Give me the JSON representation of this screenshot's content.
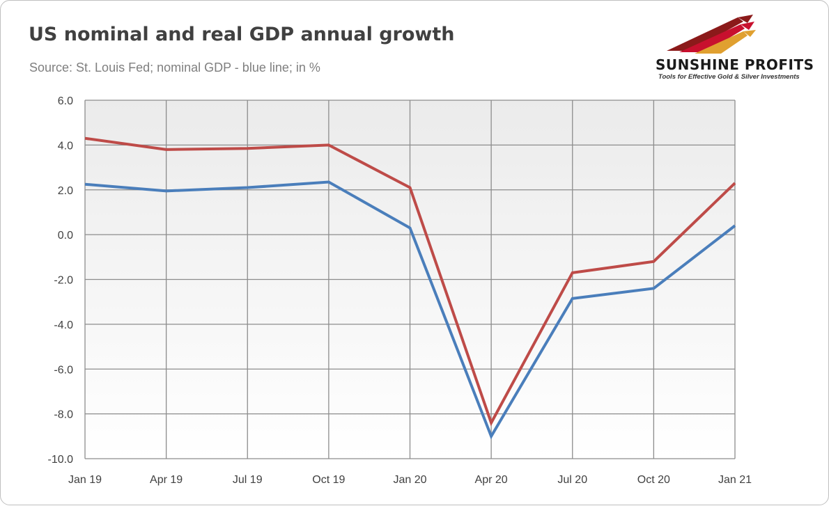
{
  "header": {
    "title": "US nominal and real GDP annual growth",
    "subtitle": "Source: St. Louis Fed; nominal GDP - blue line; in %"
  },
  "logo": {
    "name": "SUNSHINE PROFITS",
    "tagline": "Tools for Effective Gold & Silver Investments"
  },
  "colors": {
    "blue_series": "#4a7ebb",
    "red_series": "#be4b48",
    "plot_bg_top": "#ebebeb",
    "plot_bg_bottom": "#ffffff",
    "grid": "#8c8c8c"
  },
  "chart_data": {
    "type": "line",
    "title": "US nominal and real GDP annual growth",
    "subtitle": "Source: St. Louis Fed; nominal GDP - blue line; in %",
    "categories": [
      "Jan 19",
      "Apr 19",
      "Jul 19",
      "Oct 19",
      "Jan 20",
      "Apr 20",
      "Jul 20",
      "Oct 20",
      "Jan 21"
    ],
    "yticks": [
      "6.0",
      "4.0",
      "2.0",
      "0.0",
      "-2.0",
      "-4.0",
      "-6.0",
      "-8.0",
      "-10.0"
    ],
    "ylim": [
      -10,
      6
    ],
    "grid": true,
    "legend": "none",
    "series": [
      {
        "color": "#be4b48",
        "values": [
          4.3,
          3.8,
          3.85,
          4.0,
          2.1,
          -8.4,
          -1.7,
          -1.2,
          2.3
        ]
      },
      {
        "color": "#4a7ebb",
        "values": [
          2.25,
          1.95,
          2.1,
          2.35,
          0.3,
          -9.0,
          -2.85,
          -2.4,
          0.4
        ]
      }
    ]
  }
}
